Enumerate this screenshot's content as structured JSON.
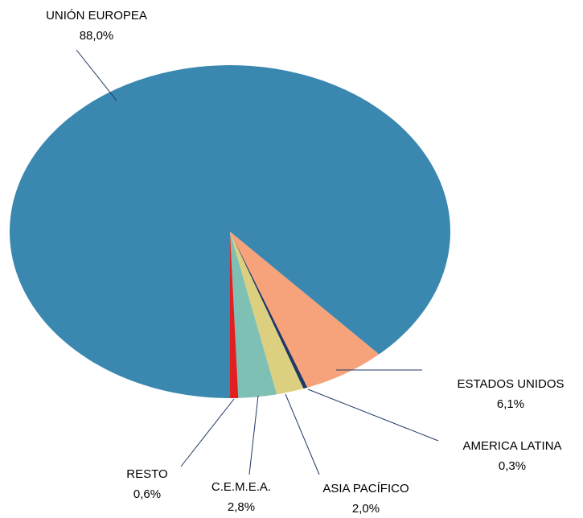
{
  "chart_data": {
    "type": "pie",
    "categories": [
      "UNIÓN EUROPEA",
      "ESTADOS UNIDOS",
      "AMERICA LATINA",
      "ASIA PACÍFICO",
      "C.E.M.E.A.",
      "RESTO"
    ],
    "values": [
      88.0,
      6.1,
      0.3,
      2.0,
      2.8,
      0.6
    ],
    "value_labels": [
      "88,0%",
      "6,1%",
      "0,3%",
      "2,0%",
      "2,8%",
      "0,6%"
    ],
    "colors": [
      "#3a87b0",
      "#f6a27a",
      "#1f3864",
      "#dccf7f",
      "#7fc0b5",
      "#e02020"
    ]
  }
}
